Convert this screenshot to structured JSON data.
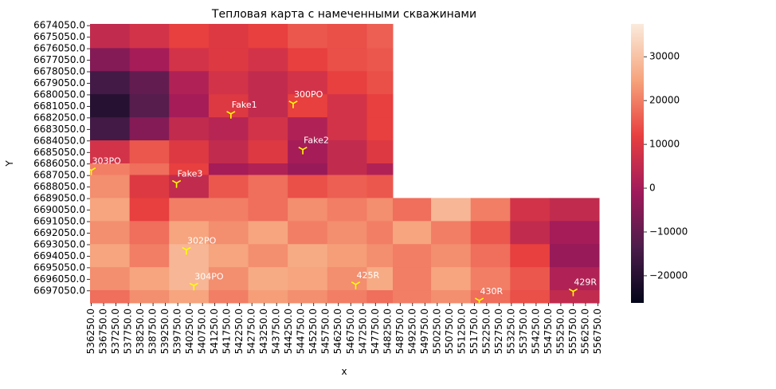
{
  "chart_data": {
    "type": "heatmap",
    "title": "Тепловая карта с намеченными скважинами",
    "xlabel": "x",
    "ylabel": "Y",
    "xlim": [
      536200,
      556800
    ],
    "ylim": [
      6673900,
      6698100
    ],
    "y_inverted": true,
    "xbins": [
      536200,
      537800,
      539400,
      541000,
      542600,
      544200,
      545800,
      547400,
      548450,
      550000,
      551600,
      553200,
      554800,
      556800
    ],
    "ybins": [
      6673900,
      6676000,
      6678000,
      6680000,
      6682000,
      6684000,
      6686000,
      6687000,
      6689000,
      6691000,
      6693000,
      6695000,
      6697000,
      6698100
    ],
    "z": [
      [
        5000,
        8000,
        12000,
        10000,
        12000,
        15000,
        14000,
        16000,
        null,
        null,
        null,
        null,
        null
      ],
      [
        -5000,
        0,
        8000,
        10000,
        8000,
        12000,
        14000,
        15000,
        null,
        null,
        null,
        null,
        null
      ],
      [
        -15000,
        -10000,
        2000,
        8000,
        5000,
        8000,
        12000,
        14000,
        null,
        null,
        null,
        null,
        null
      ],
      [
        -20000,
        -12000,
        0,
        10000,
        5000,
        12000,
        8000,
        12000,
        null,
        null,
        null,
        null,
        null
      ],
      [
        -15000,
        -5000,
        5000,
        3000,
        8000,
        2000,
        8000,
        12000,
        null,
        null,
        null,
        null,
        null
      ],
      [
        8000,
        15000,
        10000,
        5000,
        10000,
        0,
        5000,
        10000,
        null,
        null,
        null,
        null,
        null
      ],
      [
        20000,
        18000,
        12000,
        0,
        2000,
        -2000,
        5000,
        2000,
        null,
        null,
        null,
        null,
        null
      ],
      [
        22000,
        10000,
        5000,
        15000,
        18000,
        14000,
        16000,
        15000,
        null,
        null,
        null,
        null,
        null
      ],
      [
        25000,
        12000,
        20000,
        20000,
        18000,
        22000,
        20000,
        22000,
        18000,
        28000,
        20000,
        8000,
        5000
      ],
      [
        22000,
        18000,
        25000,
        22000,
        25000,
        20000,
        22000,
        20000,
        25000,
        20000,
        15000,
        5000,
        0
      ],
      [
        25000,
        20000,
        28000,
        25000,
        22000,
        26000,
        24000,
        22000,
        20000,
        22000,
        18000,
        12000,
        -2000
      ],
      [
        22000,
        25000,
        28000,
        22000,
        26000,
        25000,
        22000,
        26000,
        20000,
        25000,
        20000,
        15000,
        2000
      ],
      [
        18000,
        22000,
        25000,
        20000,
        24000,
        22000,
        20000,
        18000,
        20000,
        22000,
        18000,
        14000,
        5000
      ]
    ],
    "zlim": [
      -26200,
      37500
    ],
    "zticks": [
      {
        "value": -20000,
        "label": "−20000"
      },
      {
        "value": -10000,
        "label": "−10000"
      },
      0,
      10000,
      20000,
      30000
    ],
    "colormap": [
      "#03051a",
      "#4c1d4b",
      "#a11a5b",
      "#e83f3f",
      "#f6a47c",
      "#faebdd"
    ],
    "wells": {
      "names": [
        "Fake1",
        "300PO",
        "Fake2",
        "303PO",
        "Fake3",
        "302PO",
        "304PO",
        "425R",
        "430R",
        "429R"
      ],
      "x": [
        541900,
        544420,
        544810,
        536250,
        539700,
        540100,
        540400,
        546950,
        551950,
        555750
      ],
      "y": [
        6681700,
        6680800,
        6684800,
        6686600,
        6687700,
        6693500,
        6696600,
        6696500,
        6697900,
        6697100
      ],
      "color": "#ffff00"
    },
    "xticks": [
      {
        "value": 536250,
        "label": "536250.0"
      },
      {
        "value": 536750,
        "label": "536750.0"
      },
      {
        "value": 537250,
        "label": "537250.0"
      },
      {
        "value": 537750,
        "label": "537750.0"
      },
      {
        "value": 538250,
        "label": "538250.0"
      },
      {
        "value": 538750,
        "label": "538750.0"
      },
      {
        "value": 539250,
        "label": "539250.0"
      },
      {
        "value": 539750,
        "label": "539750.0"
      },
      {
        "value": 540250,
        "label": "540250.0"
      },
      {
        "value": 540750,
        "label": "540750.0"
      },
      {
        "value": 541250,
        "label": "541250.0"
      },
      {
        "value": 541750,
        "label": "541750.0"
      },
      {
        "value": 542250,
        "label": "542250.0"
      },
      {
        "value": 542750,
        "label": "542750.0"
      },
      {
        "value": 543250,
        "label": "543250.0"
      },
      {
        "value": 543750,
        "label": "543750.0"
      },
      {
        "value": 544250,
        "label": "544250.0"
      },
      {
        "value": 544750,
        "label": "544750.0"
      },
      {
        "value": 545250,
        "label": "545250.0"
      },
      {
        "value": 545750,
        "label": "545750.0"
      },
      {
        "value": 546250,
        "label": "546250.0"
      },
      {
        "value": 546750,
        "label": "546750.0"
      },
      {
        "value": 547250,
        "label": "547250.0"
      },
      {
        "value": 547750,
        "label": "547750.0"
      },
      {
        "value": 548250,
        "label": "548250.0"
      },
      {
        "value": 548750,
        "label": "548750.0"
      },
      {
        "value": 549250,
        "label": "549250.0"
      },
      {
        "value": 549750,
        "label": "549750.0"
      },
      {
        "value": 550250,
        "label": "550250.0"
      },
      {
        "value": 550750,
        "label": "550750.0"
      },
      {
        "value": 551250,
        "label": "551250.0"
      },
      {
        "value": 551750,
        "label": "551750.0"
      },
      {
        "value": 552250,
        "label": "552250.0"
      },
      {
        "value": 552750,
        "label": "552750.0"
      },
      {
        "value": 553250,
        "label": "553250.0"
      },
      {
        "value": 553750,
        "label": "553750.0"
      },
      {
        "value": 554250,
        "label": "554250.0"
      },
      {
        "value": 554750,
        "label": "554750.0"
      },
      {
        "value": 555250,
        "label": "555250.0"
      },
      {
        "value": 555750,
        "label": "555750.0"
      },
      {
        "value": 556250,
        "label": "556250.0"
      },
      {
        "value": 556750,
        "label": "556750.0"
      }
    ],
    "yticks": [
      {
        "value": 6674050,
        "label": "6674050.0"
      },
      {
        "value": 6675050,
        "label": "6675050.0"
      },
      {
        "value": 6676050,
        "label": "6676050.0"
      },
      {
        "value": 6677050,
        "label": "6677050.0"
      },
      {
        "value": 6678050,
        "label": "6678050.0"
      },
      {
        "value": 6679050,
        "label": "6679050.0"
      },
      {
        "value": 6680050,
        "label": "6680050.0"
      },
      {
        "value": 6681050,
        "label": "6681050.0"
      },
      {
        "value": 6682050,
        "label": "6682050.0"
      },
      {
        "value": 6683050,
        "label": "6683050.0"
      },
      {
        "value": 6684050,
        "label": "6684050.0"
      },
      {
        "value": 6685050,
        "label": "6685050.0"
      },
      {
        "value": 6686050,
        "label": "6686050.0"
      },
      {
        "value": 6687050,
        "label": "6687050.0"
      },
      {
        "value": 6688050,
        "label": "6688050.0"
      },
      {
        "value": 6689050,
        "label": "6689050.0"
      },
      {
        "value": 6690050,
        "label": "6690050.0"
      },
      {
        "value": 6691050,
        "label": "6691050.0"
      },
      {
        "value": 6692050,
        "label": "6692050.0"
      },
      {
        "value": 6693050,
        "label": "6693050.0"
      },
      {
        "value": 6694050,
        "label": "6694050.0"
      },
      {
        "value": 6695050,
        "label": "6695050.0"
      },
      {
        "value": 6696050,
        "label": "6696050.0"
      },
      {
        "value": 6697050,
        "label": "6697050.0"
      }
    ]
  }
}
